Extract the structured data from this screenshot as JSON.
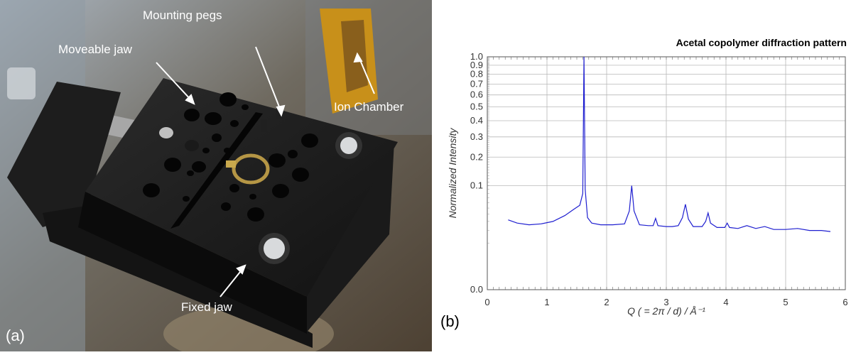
{
  "figure": {
    "panel_a": {
      "label": "(a)",
      "annotations": [
        {
          "text": "Mounting pegs"
        },
        {
          "text": "Moveable jaw"
        },
        {
          "text": "Ion Chamber"
        },
        {
          "text": "Fixed jaw"
        }
      ]
    },
    "panel_b": {
      "label": "(b)"
    }
  },
  "chart_data": {
    "type": "line",
    "title": "Acetal copolymer diffraction pattern",
    "xlabel": "Q ( = 2π / d) / Å⁻¹",
    "ylabel": "Normalized Intensity",
    "xlim": [
      0,
      6
    ],
    "ylim": [
      0,
      1.0
    ],
    "y_scale": "non-linear (compressed toward 1.0)",
    "grid": true,
    "x_ticks": [
      "0",
      "1",
      "2",
      "3",
      "4",
      "5",
      "6"
    ],
    "y_ticks": [
      "0.0",
      "0.1",
      "0.2",
      "0.3",
      "0.4",
      "0.5",
      "0.6",
      "0.7",
      "0.8",
      "0.9",
      "1.0"
    ],
    "series": [
      {
        "color": "#1f1fd0",
        "x": [
          0.35,
          0.5,
          0.7,
          0.9,
          1.1,
          1.3,
          1.45,
          1.55,
          1.6,
          1.62,
          1.64,
          1.68,
          1.75,
          1.9,
          2.1,
          2.3,
          2.38,
          2.42,
          2.46,
          2.55,
          2.7,
          2.78,
          2.82,
          2.86,
          3.0,
          3.1,
          3.2,
          3.27,
          3.32,
          3.37,
          3.45,
          3.6,
          3.66,
          3.7,
          3.74,
          3.85,
          3.98,
          4.02,
          4.06,
          4.2,
          4.35,
          4.5,
          4.65,
          4.8,
          5.0,
          5.2,
          5.4,
          5.6,
          5.75
        ],
        "y": [
          0.032,
          0.028,
          0.026,
          0.027,
          0.03,
          0.038,
          0.048,
          0.055,
          0.08,
          1.0,
          0.09,
          0.035,
          0.028,
          0.026,
          0.026,
          0.027,
          0.045,
          0.1,
          0.045,
          0.026,
          0.025,
          0.025,
          0.034,
          0.025,
          0.024,
          0.024,
          0.025,
          0.035,
          0.057,
          0.033,
          0.024,
          0.024,
          0.03,
          0.042,
          0.028,
          0.023,
          0.023,
          0.028,
          0.023,
          0.022,
          0.025,
          0.022,
          0.024,
          0.021,
          0.021,
          0.022,
          0.02,
          0.02,
          0.019
        ]
      }
    ]
  }
}
